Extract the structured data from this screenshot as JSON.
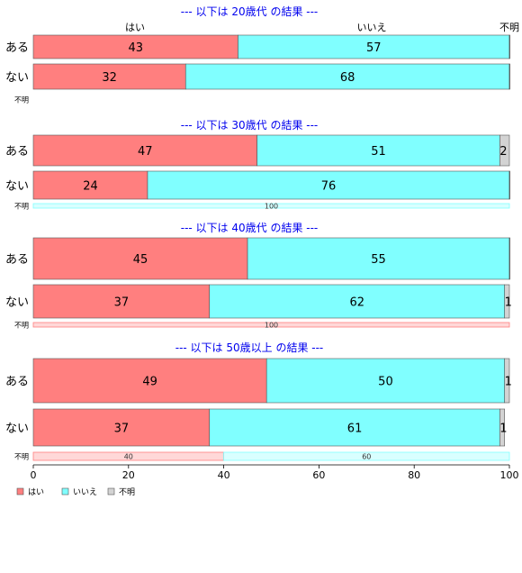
{
  "chart_data": {
    "type": "bar",
    "orientation": "horizontal",
    "stacked": true,
    "xlim": [
      0,
      100
    ],
    "xticks": [
      0,
      20,
      40,
      60,
      80,
      100
    ],
    "legend": {
      "placement": "bottom-left",
      "entries": [
        {
          "name": "はい",
          "color": "#ff7f7f"
        },
        {
          "name": "いいえ",
          "color": "#80ffff"
        },
        {
          "name": "不明",
          "color": "#d3d3d3"
        }
      ]
    },
    "column_headers": [
      "はい",
      "いいえ",
      "不明"
    ],
    "panels": [
      {
        "title": "--- 以下は 20歳代 の結果 ---",
        "show_column_headers": true,
        "rows": [
          {
            "label": "ある",
            "values": [
              43,
              57,
              0.6
            ]
          },
          {
            "label": "ない",
            "values": [
              32,
              68,
              0.2
            ]
          }
        ],
        "unknown_row": {
          "label": "不明",
          "values": []
        }
      },
      {
        "title": "--- 以下は 30歳代 の結果 ---",
        "show_column_headers": false,
        "rows": [
          {
            "label": "ある",
            "values": [
              47,
              51,
              2
            ]
          },
          {
            "label": "ない",
            "values": [
              24,
              76,
              0.2
            ]
          }
        ],
        "unknown_row": {
          "label": "不明",
          "values": [
            0,
            100,
            0
          ]
        }
      },
      {
        "title": "--- 以下は 40歳代 の結果 ---",
        "show_column_headers": false,
        "rows": [
          {
            "label": "ある",
            "values": [
              45,
              55,
              0.3
            ]
          },
          {
            "label": "ない",
            "values": [
              37,
              62,
              1
            ]
          }
        ],
        "unknown_row": {
          "label": "不明",
          "values": [
            100,
            0,
            0
          ]
        }
      },
      {
        "title": "--- 以下は 50歳以上 の結果 ---",
        "show_column_headers": false,
        "rows": [
          {
            "label": "ある",
            "values": [
              49,
              50,
              1
            ]
          },
          {
            "label": "ない",
            "values": [
              37,
              61,
              1
            ]
          }
        ],
        "unknown_row": {
          "label": "不明",
          "values": [
            40,
            60,
            0
          ]
        }
      }
    ]
  }
}
